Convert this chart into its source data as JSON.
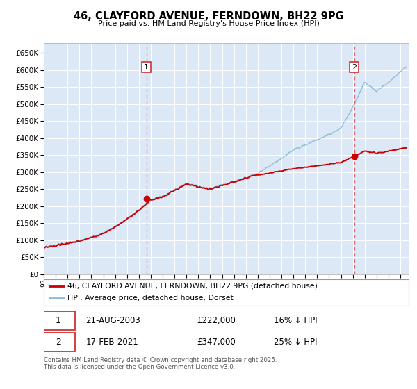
{
  "title": "46, CLAYFORD AVENUE, FERNDOWN, BH22 9PG",
  "subtitle": "Price paid vs. HM Land Registry's House Price Index (HPI)",
  "legend_line1": "46, CLAYFORD AVENUE, FERNDOWN, BH22 9PG (detached house)",
  "legend_line2": "HPI: Average price, detached house, Dorset",
  "annotation1_label": "1",
  "annotation1_date": "21-AUG-2003",
  "annotation1_price": "£222,000",
  "annotation1_hpi": "16% ↓ HPI",
  "annotation2_label": "2",
  "annotation2_date": "17-FEB-2021",
  "annotation2_price": "£347,000",
  "annotation2_hpi": "25% ↓ HPI",
  "footer": "Contains HM Land Registry data © Crown copyright and database right 2025.\nThis data is licensed under the Open Government Licence v3.0.",
  "hpi_color": "#88bbdd",
  "price_color": "#cc0000",
  "marker_color": "#cc0000",
  "vline_color": "#dd6666",
  "plot_bg": "#dce8f5",
  "grid_color": "#ffffff",
  "ylim": [
    0,
    680000
  ],
  "yticks": [
    0,
    50000,
    100000,
    150000,
    200000,
    250000,
    300000,
    350000,
    400000,
    450000,
    500000,
    550000,
    600000,
    650000
  ],
  "year_start": 1995,
  "year_end": 2025,
  "sale1_year": 2003.64,
  "sale1_price": 222000,
  "sale2_year": 2021.12,
  "sale2_price": 347000
}
